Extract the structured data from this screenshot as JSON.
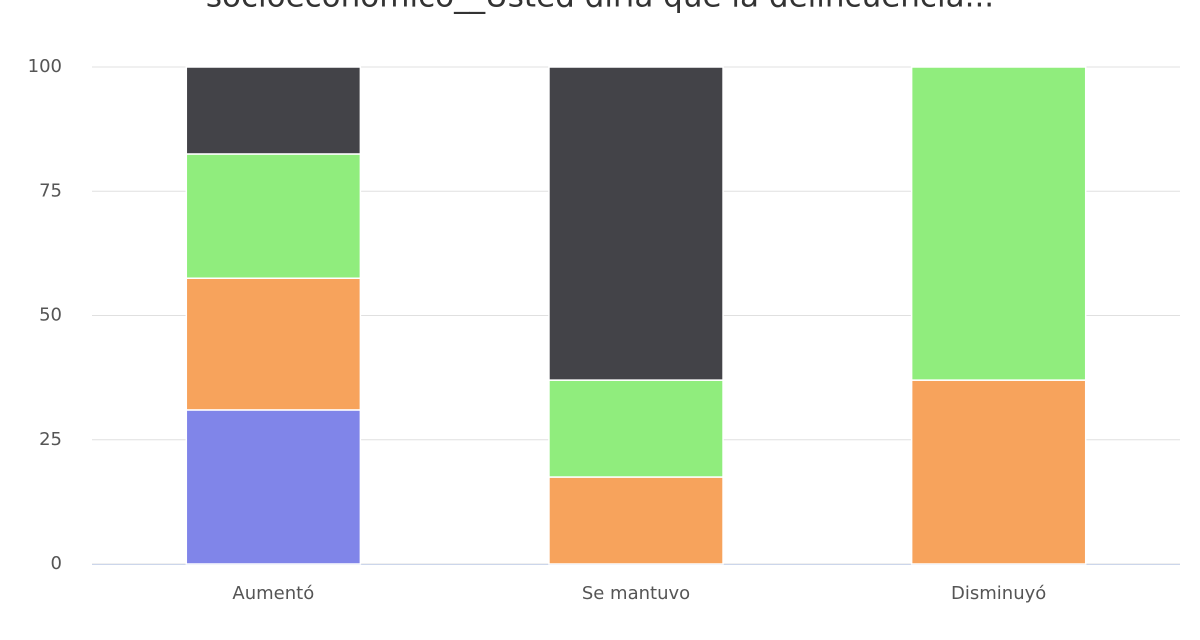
{
  "chart_data": {
    "type": "stacked_bar",
    "title": "socioeconómico__Usted diría que la delincuencia...",
    "categories": [
      "Aumentó",
      "Se mantuvo",
      "Disminuyó"
    ],
    "series": [
      {
        "color": "#8085e9",
        "values": [
          31,
          0,
          0
        ]
      },
      {
        "color": "#f7a35c",
        "values": [
          26.5,
          17.5,
          37
        ]
      },
      {
        "color": "#90ed7d",
        "values": [
          25,
          19.5,
          63
        ]
      },
      {
        "color": "#434348",
        "values": [
          17.5,
          63,
          0
        ]
      }
    ],
    "ylim": [
      0,
      100
    ],
    "yticks": [
      0,
      25,
      50,
      75,
      100
    ],
    "grid": true
  }
}
